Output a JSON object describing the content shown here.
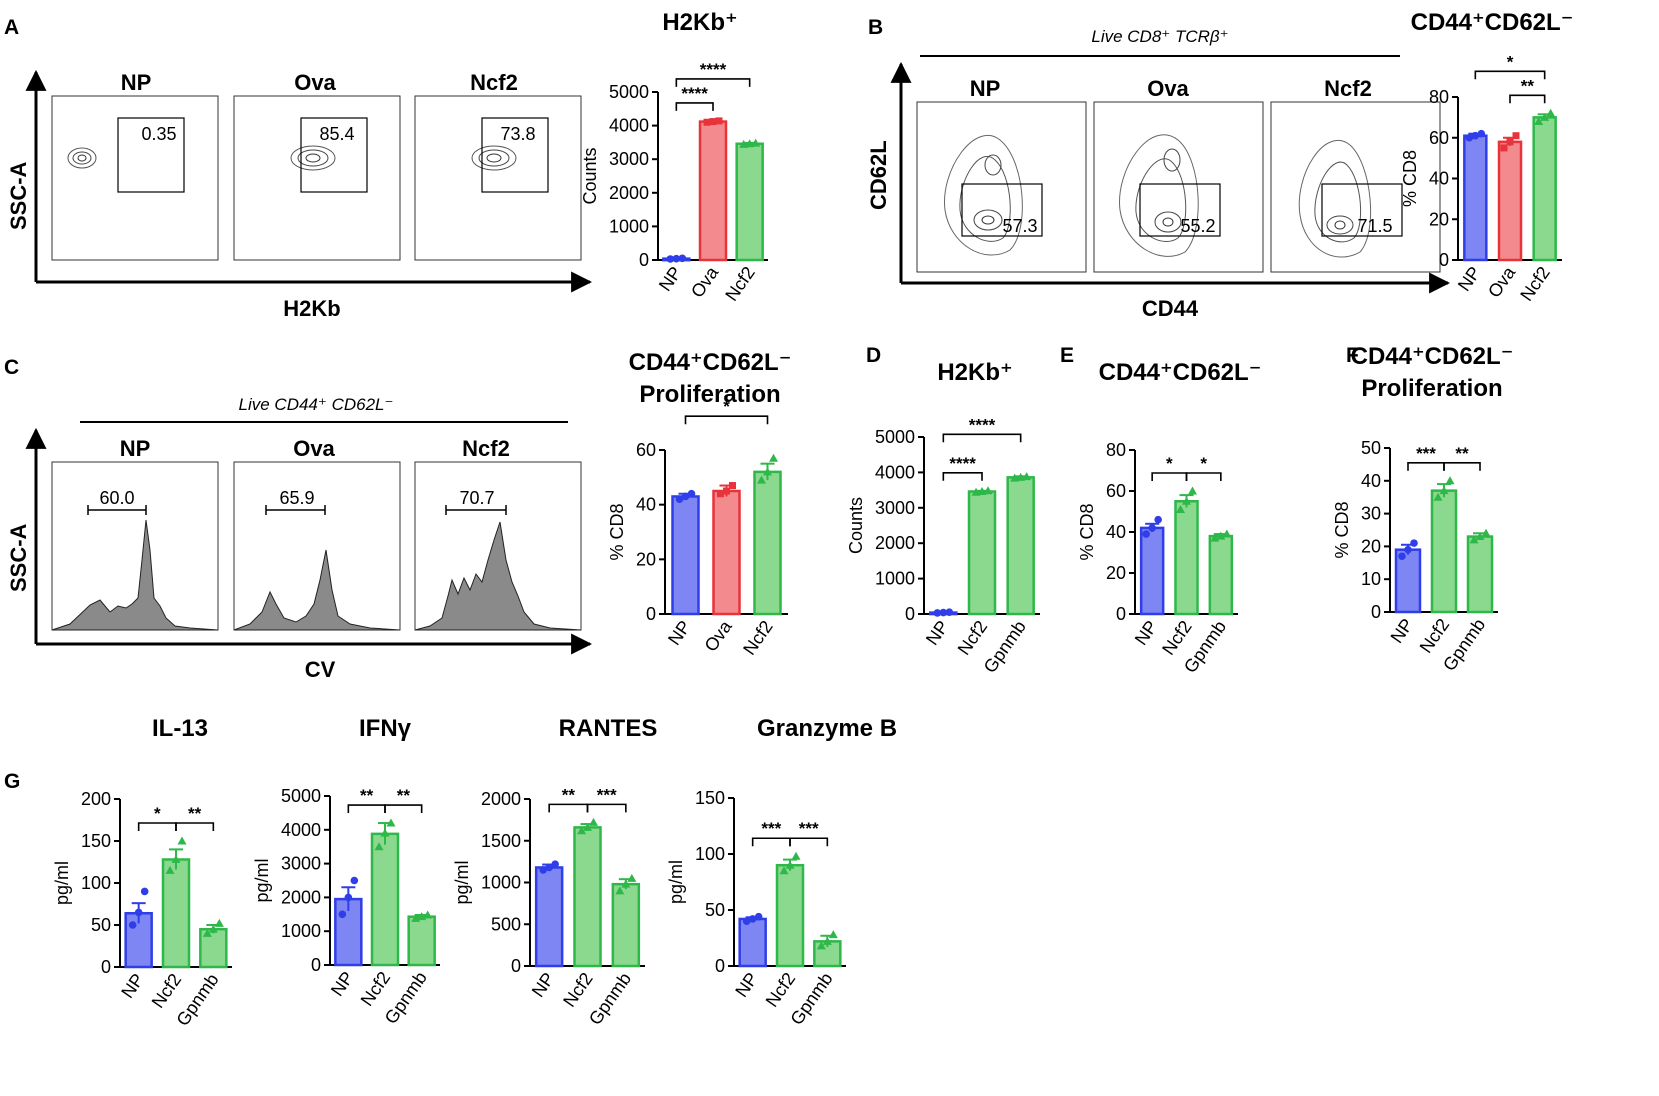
{
  "panel_letters": [
    "A",
    "B",
    "C",
    "D",
    "E",
    "F",
    "G"
  ],
  "flow_panels": [
    {
      "id": "A",
      "samples": [
        "NP",
        "Ova",
        "Ncf2"
      ],
      "gate_values": [
        "0.35",
        "85.4",
        "73.8"
      ],
      "y_axis": "SSC-A",
      "x_axis": "H2Kb",
      "header": ""
    },
    {
      "id": "B",
      "samples": [
        "NP",
        "Ova",
        "Ncf2"
      ],
      "gate_values": [
        "57.3",
        "55.2",
        "71.5"
      ],
      "y_axis": "CD62L",
      "x_axis": "CD44",
      "header": "Live CD8⁺ TCRβ⁺"
    },
    {
      "id": "C",
      "samples": [
        "NP",
        "Ova",
        "Ncf2"
      ],
      "gate_values": [
        "60.0",
        "65.9",
        "70.7"
      ],
      "y_axis": "SSC-A",
      "x_axis": "CV",
      "header": "Live CD44⁺ CD62L⁻"
    }
  ],
  "colors": {
    "NP": "#2f3ee8",
    "Ova": "#e8333a",
    "Ncf2": "#2fb84a",
    "NP_fill": "#7d86f2",
    "Ova_fill": "#f28a8e",
    "Ncf2_fill": "#8bd98f"
  },
  "chart_data": [
    {
      "type": "bar",
      "panel": "A",
      "title": "H2Kb⁺",
      "ylabel": "Counts",
      "categories": [
        "NP",
        "Ova",
        "Ncf2"
      ],
      "values": [
        40,
        4120,
        3460
      ],
      "points": [
        [
          30,
          40,
          50
        ],
        [
          4100,
          4120,
          4140
        ],
        [
          3440,
          3460,
          3480
        ]
      ],
      "errors": [
        10,
        20,
        25
      ],
      "ylim": [
        0,
        5000
      ],
      "yticks": [
        0,
        1000,
        2000,
        3000,
        4000,
        5000
      ],
      "significance": [
        {
          "from": "NP",
          "to": "Ova",
          "label": "****"
        },
        {
          "from": "NP",
          "to": "Ncf2",
          "label": "****"
        }
      ]
    },
    {
      "type": "bar",
      "panel": "B",
      "title": "CD44⁺CD62L⁻",
      "ylabel": "% CD8",
      "categories": [
        "NP",
        "Ova",
        "Ncf2"
      ],
      "values": [
        61,
        58,
        70
      ],
      "points": [
        [
          60,
          61,
          62
        ],
        [
          55,
          58,
          61
        ],
        [
          68,
          70,
          72
        ]
      ],
      "errors": [
        1,
        2,
        1.5
      ],
      "ylim": [
        0,
        80
      ],
      "yticks": [
        0,
        20,
        40,
        60,
        80
      ],
      "significance": [
        {
          "from": "Ova",
          "to": "Ncf2",
          "label": "**"
        },
        {
          "from": "NP",
          "to": "Ncf2",
          "label": "*"
        }
      ]
    },
    {
      "type": "bar",
      "panel": "C",
      "title": "CD44⁺CD62L⁻ Proliferation",
      "ylabel": "% CD8",
      "categories": [
        "NP",
        "Ova",
        "Ncf2"
      ],
      "values": [
        43,
        45,
        52
      ],
      "points": [
        [
          42,
          43,
          44
        ],
        [
          44,
          45,
          47
        ],
        [
          49,
          52,
          57
        ]
      ],
      "errors": [
        1,
        2,
        3
      ],
      "ylim": [
        0,
        60
      ],
      "yticks": [
        0,
        20,
        40,
        60
      ],
      "significance": [
        {
          "from": "NP",
          "to": "Ncf2",
          "label": "*"
        }
      ]
    },
    {
      "type": "bar",
      "panel": "D",
      "title": "H2Kb⁺",
      "ylabel": "Counts",
      "categories": [
        "NP",
        "Ncf2",
        "Gpnmb"
      ],
      "values": [
        40,
        3460,
        3860
      ],
      "points": [
        [
          30,
          40,
          50
        ],
        [
          3440,
          3460,
          3480
        ],
        [
          3840,
          3860,
          3880
        ]
      ],
      "errors": [
        10,
        20,
        30
      ],
      "ylim": [
        0,
        5000
      ],
      "yticks": [
        0,
        1000,
        2000,
        3000,
        4000,
        5000
      ],
      "significance": [
        {
          "from": "NP",
          "to": "Ncf2",
          "label": "****"
        },
        {
          "from": "NP",
          "to": "Gpnmb",
          "label": "****"
        }
      ]
    },
    {
      "type": "bar",
      "panel": "E",
      "title": "CD44⁺CD62L⁻",
      "ylabel": "% CD8",
      "categories": [
        "NP",
        "Ncf2",
        "Gpnmb"
      ],
      "values": [
        42,
        55,
        38
      ],
      "points": [
        [
          39,
          42,
          46
        ],
        [
          51,
          55,
          60
        ],
        [
          37,
          38,
          39
        ]
      ],
      "errors": [
        2,
        3,
        1
      ],
      "ylim": [
        0,
        80
      ],
      "yticks": [
        0,
        20,
        40,
        60,
        80
      ],
      "significance": [
        {
          "from": "NP",
          "to": "Ncf2",
          "label": "*"
        },
        {
          "from": "Ncf2",
          "to": "Gpnmb",
          "label": "*"
        }
      ]
    },
    {
      "type": "bar",
      "panel": "F",
      "title": "CD44⁺CD62L⁻ Proliferation",
      "ylabel": "% CD8",
      "categories": [
        "NP",
        "Ncf2",
        "Gpnmb"
      ],
      "values": [
        19,
        37,
        23
      ],
      "points": [
        [
          17,
          19,
          21
        ],
        [
          35,
          37,
          40
        ],
        [
          22,
          23,
          24
        ]
      ],
      "errors": [
        1.5,
        2,
        1
      ],
      "ylim": [
        0,
        50
      ],
      "yticks": [
        0,
        10,
        20,
        30,
        40,
        50
      ],
      "significance": [
        {
          "from": "NP",
          "to": "Ncf2",
          "label": "***"
        },
        {
          "from": "Ncf2",
          "to": "Gpnmb",
          "label": "**"
        }
      ]
    },
    {
      "type": "bar",
      "panel": "G",
      "title": "IL-13",
      "ylabel": "pg/ml",
      "categories": [
        "NP",
        "Ncf2",
        "Gpnmb"
      ],
      "values": [
        64,
        128,
        45
      ],
      "points": [
        [
          50,
          65,
          90
        ],
        [
          115,
          128,
          150
        ],
        [
          40,
          45,
          52
        ]
      ],
      "errors": [
        12,
        12,
        5
      ],
      "ylim": [
        0,
        200
      ],
      "yticks": [
        0,
        50,
        100,
        150,
        200
      ],
      "significance": [
        {
          "from": "NP",
          "to": "Ncf2",
          "label": "*"
        },
        {
          "from": "Ncf2",
          "to": "Gpnmb",
          "label": "**"
        }
      ]
    },
    {
      "type": "bar",
      "panel": "G",
      "title": "IFNγ",
      "ylabel": "pg/ml",
      "categories": [
        "NP",
        "Ncf2",
        "Gpnmb"
      ],
      "values": [
        1950,
        3880,
        1430
      ],
      "points": [
        [
          1500,
          2000,
          2500
        ],
        [
          3500,
          3900,
          4200
        ],
        [
          1380,
          1430,
          1480
        ]
      ],
      "errors": [
        350,
        320,
        50
      ],
      "ylim": [
        0,
        5000
      ],
      "yticks": [
        0,
        1000,
        2000,
        3000,
        4000,
        5000
      ],
      "significance": [
        {
          "from": "NP",
          "to": "Ncf2",
          "label": "**"
        },
        {
          "from": "Ncf2",
          "to": "Gpnmb",
          "label": "**"
        }
      ]
    },
    {
      "type": "bar",
      "panel": "G",
      "title": "RANTES",
      "ylabel": "pg/ml",
      "categories": [
        "NP",
        "Ncf2",
        "Gpnmb"
      ],
      "values": [
        1180,
        1660,
        980
      ],
      "points": [
        [
          1150,
          1180,
          1220
        ],
        [
          1620,
          1660,
          1720
        ],
        [
          900,
          980,
          1050
        ]
      ],
      "errors": [
        35,
        40,
        60
      ],
      "ylim": [
        0,
        2000
      ],
      "yticks": [
        0,
        500,
        1000,
        1500,
        2000
      ],
      "significance": [
        {
          "from": "NP",
          "to": "Ncf2",
          "label": "**"
        },
        {
          "from": "Ncf2",
          "to": "Gpnmb",
          "label": "***"
        }
      ]
    },
    {
      "type": "bar",
      "panel": "G",
      "title": "Granzyme B",
      "ylabel": "pg/ml",
      "categories": [
        "NP",
        "Ncf2",
        "Gpnmb"
      ],
      "values": [
        42,
        90,
        22
      ],
      "points": [
        [
          40,
          42,
          44
        ],
        [
          85,
          90,
          98
        ],
        [
          18,
          22,
          28
        ]
      ],
      "errors": [
        1.5,
        5,
        5
      ],
      "ylim": [
        0,
        150
      ],
      "yticks": [
        0,
        50,
        100,
        150
      ],
      "significance": [
        {
          "from": "NP",
          "to": "Ncf2",
          "label": "***"
        },
        {
          "from": "Ncf2",
          "to": "Gpnmb",
          "label": "***"
        }
      ]
    }
  ]
}
